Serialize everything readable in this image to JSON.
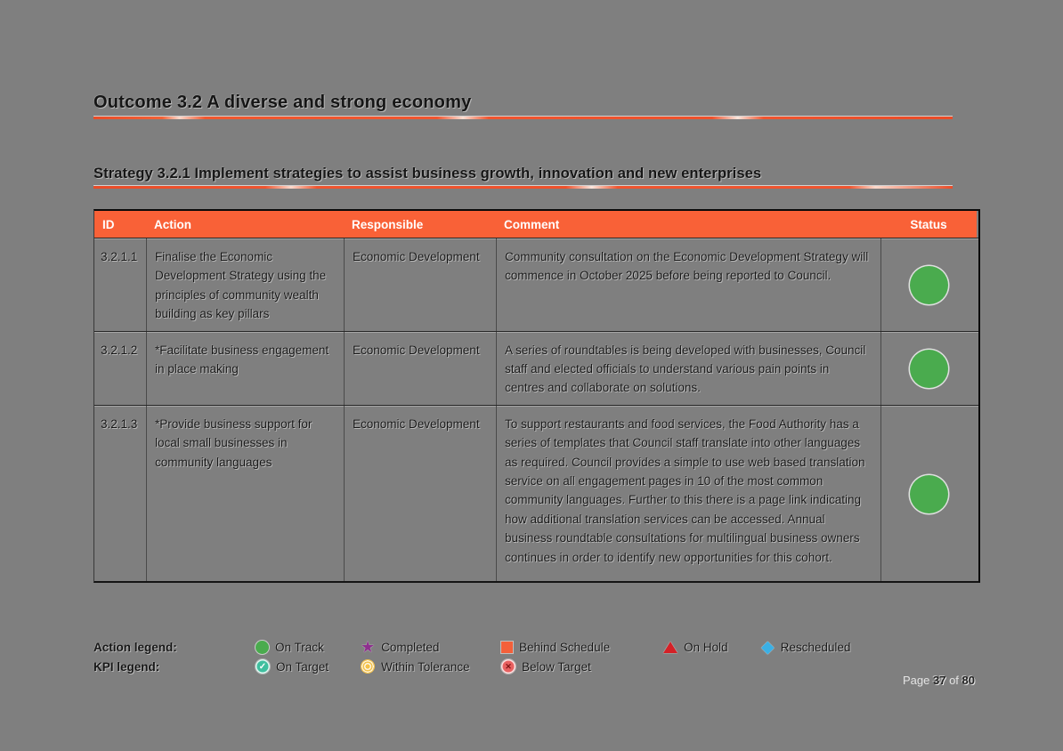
{
  "headings": {
    "outcome": "Outcome 3.2 A diverse and strong economy",
    "strategy": "Strategy 3.2.1 Implement strategies to assist business growth, innovation and new enterprises"
  },
  "table": {
    "headers": [
      "ID",
      "Action",
      "Responsible",
      "Comment",
      "Status"
    ],
    "rows": [
      {
        "id": "3.2.1.1",
        "action": "Finalise the Economic Development Strategy using the principles of community wealth building as key pillars",
        "responsible": "Economic Development",
        "comment": "Community consultation on the Economic Development Strategy will commence in October 2025 before being reported to Council.",
        "status": "On Track",
        "status_color": "#4aab4e"
      },
      {
        "id": "3.2.1.2",
        "action": "*Facilitate business engagement in place making",
        "responsible": "Economic Development",
        "comment": "A series of roundtables is being developed with businesses, Council staff and elected officials to understand various pain points in centres and collaborate on solutions.",
        "status": "On Track",
        "status_color": "#4aab4e"
      },
      {
        "id": "3.2.1.3",
        "action": "*Provide business support for local small businesses in community languages",
        "responsible": "Economic Development",
        "comment": "To support restaurants and food services, the Food Authority has a series of templates that Council staff translate into other languages as required. Council provides a simple to use web based translation service on all engagement pages in 10 of the most common community languages.  Further to this there is a page link indicating how additional translation services can be accessed. Annual business roundtable consultations for multilingual business owners continues in order to identify new opportunities for this cohort.",
        "status": "On Track",
        "status_color": "#4aab4e"
      }
    ]
  },
  "legend": {
    "action_label": "Action legend:",
    "kpi_label": "KPI legend:",
    "action_items": [
      {
        "label": "On Track",
        "icon": "green-circle",
        "color": "#4aab4e"
      },
      {
        "label": "Completed",
        "icon": "purple-star",
        "color": "#8e2f8e"
      },
      {
        "label": "Behind Schedule",
        "icon": "orange-square",
        "color": "#f4603a"
      },
      {
        "label": "On Hold",
        "icon": "red-triangle",
        "color": "#d42127"
      },
      {
        "label": "Rescheduled",
        "icon": "blue-diamond",
        "color": "#3bb0e5"
      }
    ],
    "kpi_items": [
      {
        "label": "On Target",
        "icon": "teal-check-circle",
        "color": "#3fbf9f"
      },
      {
        "label": "Within Tolerance",
        "icon": "gold-bullseye",
        "color": "#f3c14b"
      },
      {
        "label": "Below Target",
        "icon": "red-x-circle",
        "color": "#e86060"
      }
    ]
  },
  "footer": {
    "page_label": "Page",
    "page_number": "37",
    "of_label": "of",
    "total_pages": "80"
  },
  "colors": {
    "page_background": "#7f7f7f",
    "table_header_background": "#f96137",
    "heading_underline": "#ee4f2b",
    "status_green": "#4aab4e"
  }
}
